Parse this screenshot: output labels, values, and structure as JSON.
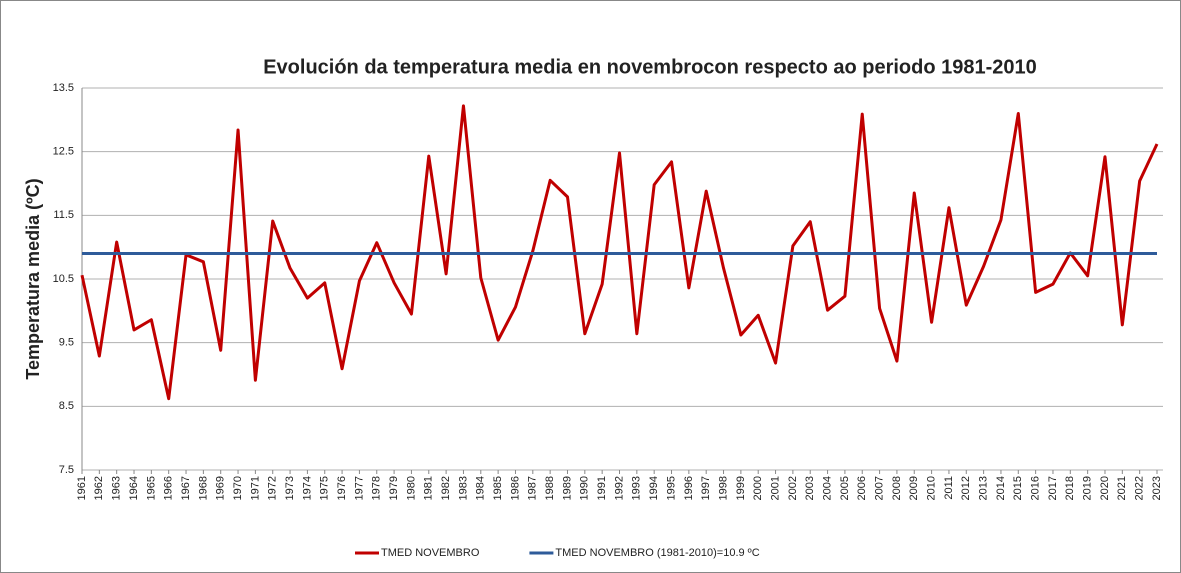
{
  "chart_data": {
    "type": "line",
    "title": "Evolución  da temperatura media en novembrocon respecto ao periodo 1981-2010",
    "y_label": "Temperatura media (ºC)",
    "x": [
      1961,
      1962,
      1963,
      1964,
      1965,
      1966,
      1967,
      1968,
      1969,
      1970,
      1971,
      1972,
      1973,
      1974,
      1975,
      1976,
      1977,
      1978,
      1979,
      1980,
      1981,
      1982,
      1983,
      1984,
      1985,
      1986,
      1987,
      1988,
      1989,
      1990,
      1991,
      1992,
      1993,
      1994,
      1995,
      1996,
      1997,
      1998,
      1999,
      2000,
      2001,
      2002,
      2003,
      2004,
      2005,
      2006,
      2007,
      2008,
      2009,
      2010,
      2011,
      2012,
      2013,
      2014,
      2015,
      2016,
      2017,
      2018,
      2019,
      2020,
      2021,
      2022,
      2023
    ],
    "xlim": [
      1961,
      2023
    ],
    "series": [
      {
        "name": "TMED NOVEMBRO",
        "color": "#c00000",
        "values": [
          10.56,
          9.29,
          11.08,
          9.7,
          9.86,
          8.62,
          10.88,
          10.77,
          9.38,
          12.84,
          8.91,
          11.41,
          10.67,
          10.2,
          10.44,
          9.09,
          10.47,
          11.07,
          10.44,
          9.95,
          12.43,
          10.58,
          13.22,
          10.52,
          9.54,
          10.06,
          10.94,
          12.05,
          11.79,
          9.64,
          10.42,
          12.48,
          9.64,
          11.98,
          12.34,
          10.36,
          11.88,
          10.67,
          9.62,
          9.93,
          9.18,
          11.02,
          11.4,
          10.01,
          10.23,
          13.09,
          10.04,
          9.21,
          11.85,
          9.82,
          11.62,
          10.09,
          10.7,
          11.43,
          13.1,
          10.29,
          10.42,
          10.91,
          10.55,
          12.42,
          9.78,
          12.04,
          12.62
        ]
      },
      {
        "name": "TMED NOVEMBRO (1981-2010)=10.9 ºC",
        "color": "#2e5b9a",
        "values": [
          10.9,
          10.9,
          10.9,
          10.9,
          10.9,
          10.9,
          10.9,
          10.9,
          10.9,
          10.9,
          10.9,
          10.9,
          10.9,
          10.9,
          10.9,
          10.9,
          10.9,
          10.9,
          10.9,
          10.9,
          10.9,
          10.9,
          10.9,
          10.9,
          10.9,
          10.9,
          10.9,
          10.9,
          10.9,
          10.9,
          10.9,
          10.9,
          10.9,
          10.9,
          10.9,
          10.9,
          10.9,
          10.9,
          10.9,
          10.9,
          10.9,
          10.9,
          10.9,
          10.9,
          10.9,
          10.9,
          10.9,
          10.9,
          10.9,
          10.9,
          10.9,
          10.9,
          10.9,
          10.9,
          10.9,
          10.9,
          10.9,
          10.9,
          10.9,
          10.9,
          10.9,
          10.9,
          10.9
        ]
      }
    ],
    "ylim": [
      7.5,
      13.5
    ],
    "yticks": [
      7.5,
      8.5,
      9.5,
      10.5,
      11.5,
      12.5,
      13.5
    ],
    "grid": true,
    "legend": "bottom"
  }
}
